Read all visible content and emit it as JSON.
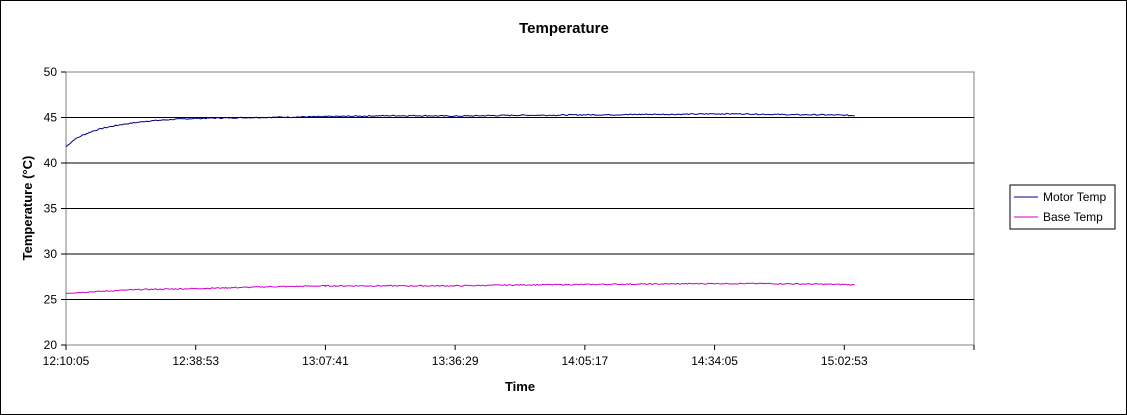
{
  "chart_data": {
    "type": "line",
    "title": "Temperature",
    "xlabel": "Time",
    "ylabel": "Temperature (°C)",
    "ylim": [
      20,
      50
    ],
    "y_ticks": [
      "20",
      "25",
      "30",
      "35",
      "40",
      "45",
      "50"
    ],
    "x_ticks": [
      "12:10:05",
      "12:38:53",
      "13:07:41",
      "13:36:29",
      "14:05:17",
      "14:34:05",
      "15:02:53"
    ],
    "x_axis_end": "15:31:41",
    "x_start": "12:10:05",
    "x_end": "15:05:13",
    "grid": "horizontal",
    "legend": "right",
    "plot_background": "#ffffff",
    "series": [
      {
        "name": "Motor Temp",
        "color": "#000080",
        "points": [
          [
            "12:10:05",
            41.8
          ],
          [
            "12:12:00",
            42.6
          ],
          [
            "12:14:00",
            43.1
          ],
          [
            "12:16:00",
            43.5
          ],
          [
            "12:18:00",
            43.8
          ],
          [
            "12:20:00",
            44.0
          ],
          [
            "12:22:00",
            44.2
          ],
          [
            "12:25:00",
            44.4
          ],
          [
            "12:28:00",
            44.6
          ],
          [
            "12:31:00",
            44.7
          ],
          [
            "12:34:00",
            44.8
          ],
          [
            "12:38:53",
            44.9
          ],
          [
            "12:45:00",
            44.95
          ],
          [
            "12:52:00",
            45.0
          ],
          [
            "13:00:00",
            45.05
          ],
          [
            "13:07:41",
            45.1
          ],
          [
            "13:15:00",
            45.15
          ],
          [
            "13:22:00",
            45.2
          ],
          [
            "13:29:00",
            45.2
          ],
          [
            "13:36:29",
            45.15
          ],
          [
            "13:43:00",
            45.2
          ],
          [
            "13:50:00",
            45.25
          ],
          [
            "13:57:00",
            45.25
          ],
          [
            "14:05:17",
            45.3
          ],
          [
            "14:12:00",
            45.3
          ],
          [
            "14:19:00",
            45.35
          ],
          [
            "14:26:00",
            45.35
          ],
          [
            "14:34:05",
            45.4
          ],
          [
            "14:40:00",
            45.4
          ],
          [
            "14:46:00",
            45.35
          ],
          [
            "14:52:00",
            45.3
          ],
          [
            "14:58:00",
            45.3
          ],
          [
            "15:02:53",
            45.25
          ],
          [
            "15:05:13",
            45.2
          ]
        ]
      },
      {
        "name": "Base Temp",
        "color": "#cc00cc",
        "points": [
          [
            "12:10:05",
            25.7
          ],
          [
            "12:14:00",
            25.8
          ],
          [
            "12:18:00",
            25.9
          ],
          [
            "12:22:00",
            26.0
          ],
          [
            "12:27:00",
            26.1
          ],
          [
            "12:33:00",
            26.15
          ],
          [
            "12:38:53",
            26.2
          ],
          [
            "12:47:00",
            26.3
          ],
          [
            "12:55:00",
            26.4
          ],
          [
            "13:02:00",
            26.45
          ],
          [
            "13:07:41",
            26.5
          ],
          [
            "13:20:00",
            26.5
          ],
          [
            "13:36:29",
            26.5
          ],
          [
            "13:50:00",
            26.6
          ],
          [
            "14:05:17",
            26.65
          ],
          [
            "14:20:00",
            26.7
          ],
          [
            "14:34:05",
            26.75
          ],
          [
            "14:45:00",
            26.75
          ],
          [
            "14:55:00",
            26.7
          ],
          [
            "15:02:53",
            26.65
          ],
          [
            "15:05:13",
            26.6
          ]
        ]
      }
    ]
  }
}
